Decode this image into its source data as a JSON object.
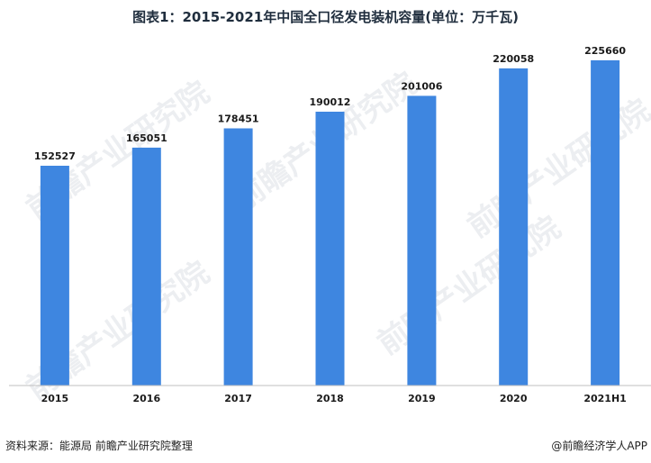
{
  "title": "图表1：2015-2021年中国全口径发电装机容量(单位：万千瓦)",
  "footer": {
    "source": "资料来源：能源局 前瞻产业研究院整理",
    "credit": "@前瞻经济学人APP"
  },
  "watermark": "前瞻产业研究院",
  "colors": {
    "bar": "#3e86e0",
    "axis": "#bfbfbf",
    "label": "#1a1a1a"
  },
  "chart_data": {
    "type": "bar",
    "title": "图表1：2015-2021年中国全口径发电装机容量(单位：万千瓦)",
    "categories": [
      "2015",
      "2016",
      "2017",
      "2018",
      "2019",
      "2020",
      "2021H1"
    ],
    "values": [
      152527,
      165051,
      178451,
      190012,
      201006,
      220058,
      225660
    ],
    "xlabel": "",
    "ylabel": "",
    "ylim": [
      0,
      250000
    ],
    "grid": false,
    "data_labels": true
  }
}
